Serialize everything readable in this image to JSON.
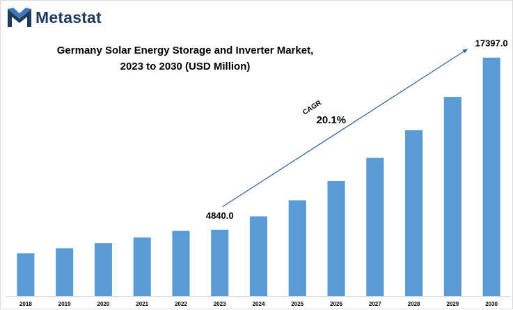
{
  "brand": {
    "name": "Metastat",
    "logo_icon": "metastat-m-logo-icon",
    "color": "#1f3a5c"
  },
  "chart_data": {
    "type": "bar",
    "title": "Germany Solar Energy Storage and Inverter Market, 2023 to 2030 (USD Million)",
    "title_lines": [
      "Germany Solar Energy Storage and Inverter Market,",
      "2023 to 2030 (USD Million)"
    ],
    "categories": [
      "2018",
      "2019",
      "2020",
      "2021",
      "2022",
      "2023",
      "2024",
      "2025",
      "2026",
      "2027",
      "2028",
      "2029",
      "2030"
    ],
    "values": [
      3130,
      3490,
      3860,
      4280,
      4760,
      4840,
      5820,
      6990,
      8390,
      10080,
      12100,
      14530,
      17397
    ],
    "ylim": [
      0,
      18500
    ],
    "xlabel": "",
    "ylabel": "",
    "bar_color": "#5b9bd5",
    "grid": false,
    "data_labels": [
      {
        "index": 5,
        "text": "4840.0"
      },
      {
        "index": 12,
        "text": "17397.0"
      }
    ],
    "annotation": {
      "label": "CAGR",
      "value": "20.1%",
      "from_index": 5,
      "to_index": 12,
      "arrow_color": "#2e5f96"
    }
  }
}
